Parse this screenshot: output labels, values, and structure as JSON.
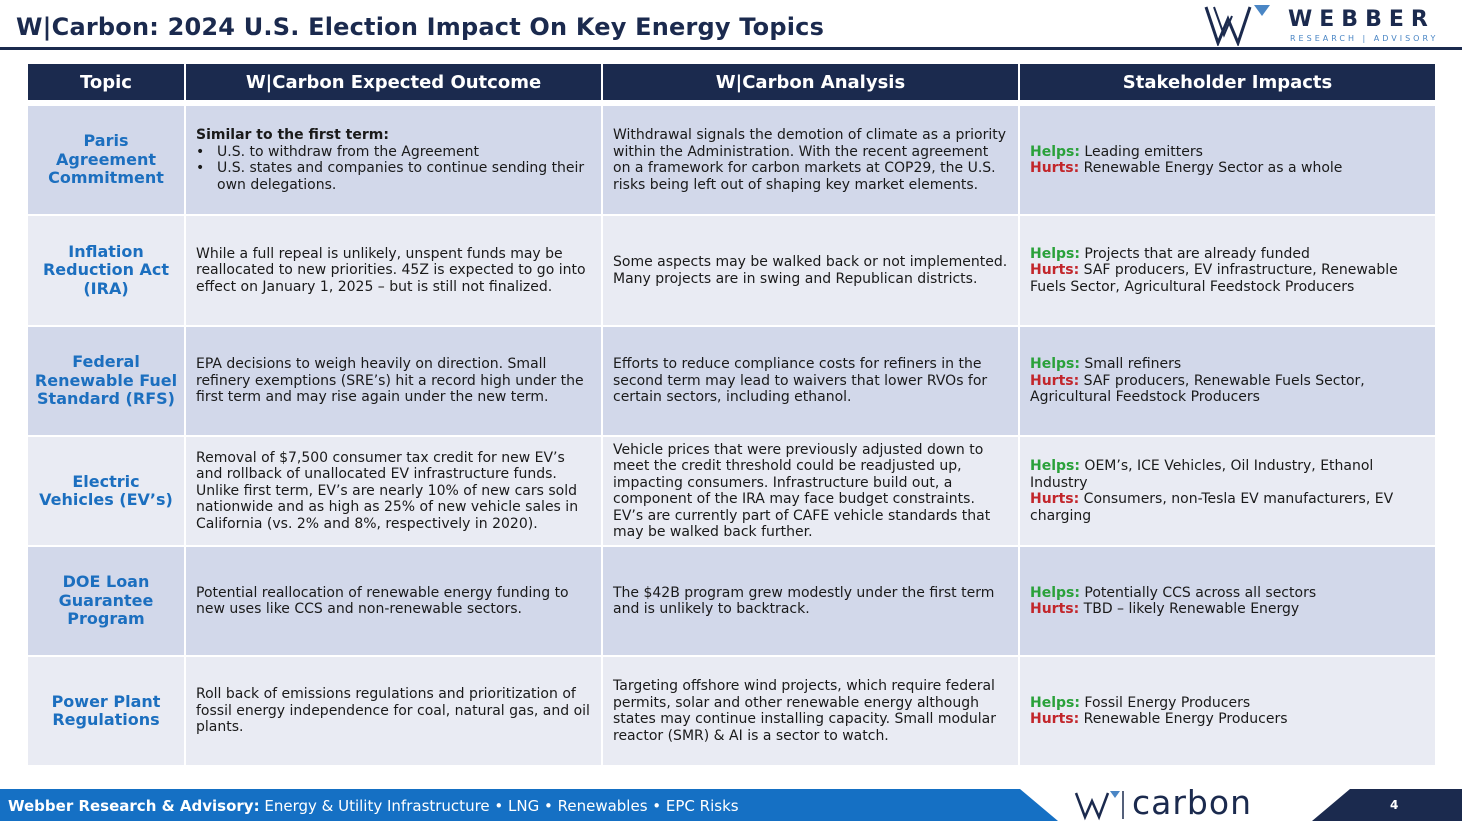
{
  "header": {
    "title": "W|Carbon: 2024 U.S. Election Impact On Key Energy Topics",
    "logo_word": "WEBBER",
    "logo_sub": "RESEARCH | ADVISORY"
  },
  "table": {
    "columns": [
      "Topic",
      "W|Carbon Expected Outcome",
      "W|Carbon Analysis",
      "Stakeholder Impacts"
    ],
    "helps_label": "Helps:",
    "hurts_label": "Hurts:",
    "rows": [
      {
        "topic": "Paris Agreement Commitment",
        "outcome_lead": "Similar to the first term:",
        "outcome_bullets": [
          "U.S. to withdraw from the Agreement",
          "U.S. states and companies to continue sending their own delegations."
        ],
        "analysis": "Withdrawal signals the demotion of climate as a priority within the Administration. With the recent agreement on a framework for carbon markets at COP29, the U.S. risks being left out of shaping key market elements.",
        "helps": "Leading emitters",
        "hurts": "Renewable Energy Sector as a whole"
      },
      {
        "topic": "Inflation Reduction Act (IRA)",
        "outcome": "While a full repeal is unlikely, unspent funds may be reallocated to new priorities. 45Z is expected to go into effect on January 1, 2025 – but is still not finalized.",
        "analysis": "Some aspects may be walked back or not implemented. Many projects are in swing and Republican districts.",
        "helps": "Projects that are already funded",
        "hurts": "SAF producers, EV infrastructure, Renewable Fuels Sector, Agricultural Feedstock Producers"
      },
      {
        "topic": "Federal Renewable Fuel Standard (RFS)",
        "outcome": "EPA decisions to weigh heavily on direction. Small refinery exemptions (SRE’s) hit a record high under the first term and may rise again under the new term.",
        "analysis": "Efforts to reduce compliance costs for refiners in the second term may lead to waivers that lower RVOs for certain sectors, including ethanol.",
        "helps": "Small refiners",
        "hurts": "SAF producers, Renewable Fuels Sector, Agricultural Feedstock Producers"
      },
      {
        "topic": "Electric Vehicles (EV’s)",
        "outcome": "Removal of $7,500 consumer tax credit for new EV’s and rollback of unallocated EV infrastructure funds. Unlike first term, EV’s are nearly 10% of new cars sold nationwide and as high as 25% of new vehicle sales in California (vs. 2% and 8%, respectively in 2020).",
        "analysis": "Vehicle prices that were previously adjusted down to meet the credit threshold could be readjusted up, impacting consumers. Infrastructure build out, a component of the IRA may face budget constraints. EV’s are currently part of CAFE vehicle standards that may be walked back further.",
        "helps": "OEM’s, ICE Vehicles, Oil Industry, Ethanol Industry",
        "hurts": "Consumers, non-Tesla EV manufacturers, EV charging"
      },
      {
        "topic": "DOE Loan Guarantee Program",
        "outcome": "Potential reallocation of renewable energy funding to new uses like CCS and non-renewable sectors.",
        "analysis": "The $42B program grew modestly under the first term and is unlikely to backtrack.",
        "helps": "Potentially CCS across all sectors",
        "hurts": "TBD – likely Renewable Energy"
      },
      {
        "topic": "Power Plant Regulations",
        "outcome": "Roll back of emissions regulations and prioritization of fossil energy independence for coal, natural gas, and oil plants.",
        "analysis": "Targeting offshore wind projects, which require federal permits, solar and other renewable energy although states may continue installing capacity. Small modular reactor (SMR) & AI is a sector to watch.",
        "helps": "Fossil Energy Producers",
        "hurts": "Renewable Energy Producers"
      }
    ]
  },
  "footer": {
    "firm": "Webber Research & Advisory:",
    "tagline": "Energy & Utility Infrastructure • LNG • Renewables • EPC Risks",
    "logo_text": "carbon",
    "page_number": "4"
  },
  "colors": {
    "navy": "#1b2a4e",
    "accent_blue": "#1570c4",
    "topic_blue": "#1c6fbf",
    "helps_green": "#2aa13a",
    "hurts_red": "#c2262b",
    "row_dark": "#d2d8ea",
    "row_light": "#e9ebf3"
  }
}
